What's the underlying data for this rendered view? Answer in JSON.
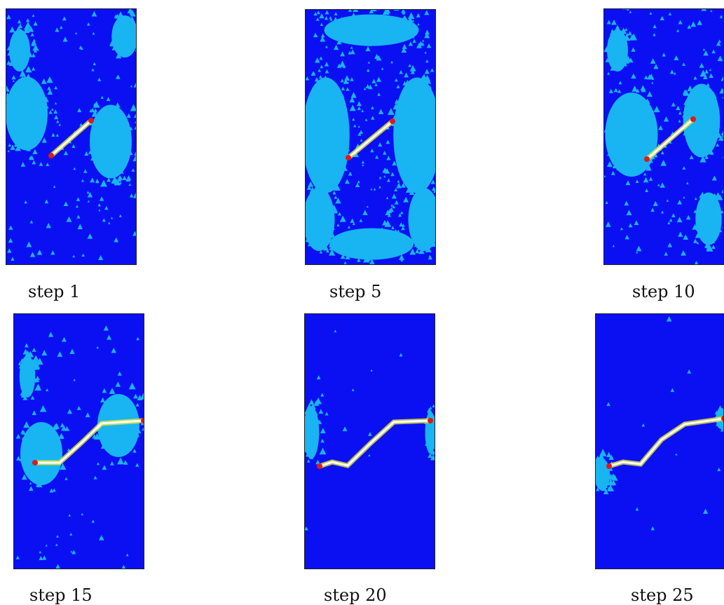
{
  "panels": [
    {
      "label": "step 1"
    },
    {
      "label": "step 5"
    },
    {
      "label": "step 10"
    },
    {
      "label": "step 15"
    },
    {
      "label": "step 20"
    },
    {
      "label": "step 25"
    }
  ]
}
